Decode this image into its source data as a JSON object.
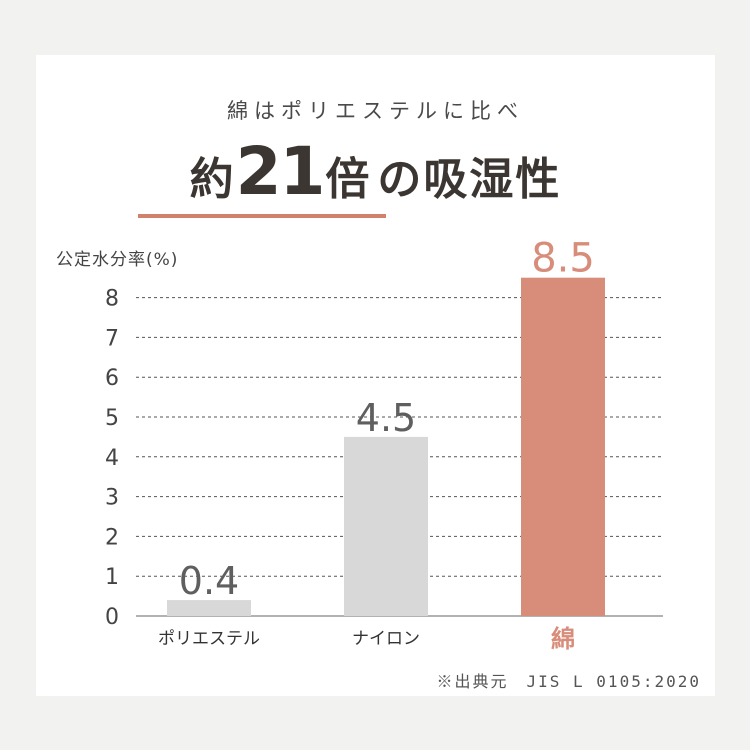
{
  "header": {
    "subtitle": "綿はポリエステルに比べ",
    "headline_prefix": "約",
    "headline_number": "21",
    "headline_mid": "倍",
    "headline_suffix": "の吸湿性"
  },
  "source": "※出典元　JIS L 0105:2020",
  "colors": {
    "background": "#f2f3f1",
    "card": "#ffffff",
    "accent": "#d0826d",
    "bar_gray": "#d8d8d8",
    "bar_highlight": "#d88c7a",
    "text_dark": "#3b3632",
    "value_gray": "#5f5f5f"
  },
  "chart_data": {
    "type": "bar",
    "ylabel": "公定水分率(%)",
    "categories": [
      "ポリエステル",
      "ナイロン",
      "綿"
    ],
    "values": [
      0.4,
      4.5,
      8.5
    ],
    "value_labels": [
      "0.4",
      "4.5",
      "8.5"
    ],
    "highlight_index": 2,
    "ylim": [
      0,
      8.5
    ],
    "yticks": [
      0,
      1,
      2,
      3,
      4,
      5,
      6,
      7,
      8
    ],
    "grid": "dashed horizontal"
  }
}
